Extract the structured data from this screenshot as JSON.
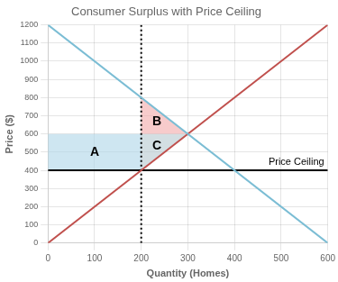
{
  "chart_data": {
    "type": "line",
    "title": "Consumer Surplus with Price Ceiling",
    "xlabel": "Quantity (Homes)",
    "ylabel": "Price ($)",
    "xlim": [
      0,
      600
    ],
    "ylim": [
      0,
      1200
    ],
    "xticks": [
      0,
      100,
      200,
      300,
      400,
      500,
      600
    ],
    "yticks": [
      0,
      100,
      200,
      300,
      400,
      500,
      600,
      700,
      800,
      900,
      1000,
      1100,
      1200
    ],
    "grid": true,
    "series": [
      {
        "type": "area",
        "x": [
          0,
          200,
          200,
          0
        ],
        "values": [
          400,
          400,
          600,
          600
        ],
        "color": "#aed6e8",
        "label": "A"
      },
      {
        "type": "area",
        "x": [
          200,
          200,
          300
        ],
        "values": [
          400,
          600,
          600
        ],
        "color": "#b5c8cf",
        "label": "C"
      },
      {
        "type": "area",
        "x": [
          200,
          200,
          300
        ],
        "values": [
          600,
          800,
          600
        ],
        "color": "#f2a9a8",
        "label": "B"
      },
      {
        "type": "line",
        "x": [
          0,
          600
        ],
        "values": [
          1200,
          0
        ],
        "color": "#7bbdd4"
      },
      {
        "type": "line",
        "x": [
          0,
          600
        ],
        "values": [
          0,
          1200
        ],
        "color": "#c0504d"
      },
      {
        "type": "line",
        "x": [
          0,
          600
        ],
        "values": [
          400,
          400
        ],
        "color": "#000000",
        "label": "Price Ceiling"
      },
      {
        "type": "line",
        "x": [
          200,
          200
        ],
        "values": [
          0,
          1200
        ],
        "color": "#000000",
        "line_style": "dotted"
      }
    ]
  }
}
